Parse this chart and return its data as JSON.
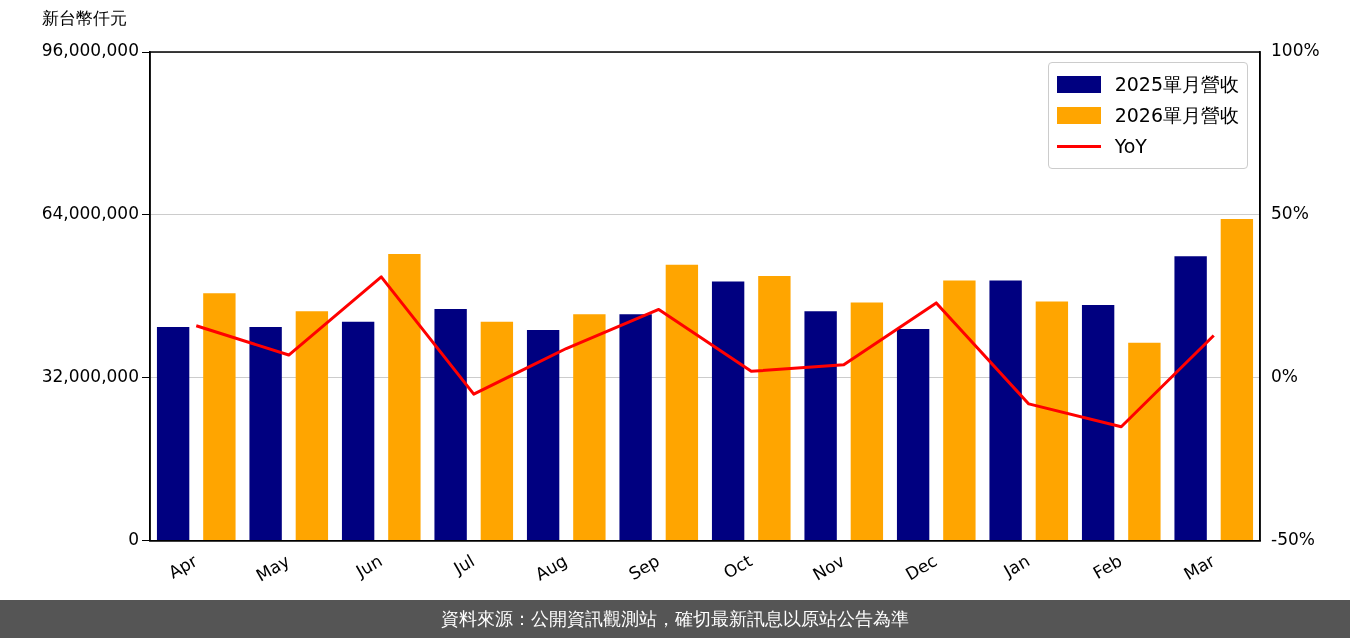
{
  "chart_data": {
    "type": "bar",
    "ylabel": "新台幣仟元",
    "categories": [
      "Apr",
      "May",
      "Jun",
      "Jul",
      "Aug",
      "Sep",
      "Oct",
      "Nov",
      "Dec",
      "Jan",
      "Feb",
      "Mar"
    ],
    "series": [
      {
        "name": "2025單月營收",
        "color": "#000080",
        "values": [
          42000000,
          42000000,
          43000000,
          45500000,
          41400000,
          44500000,
          50900000,
          45100000,
          41600000,
          51100000,
          46300000,
          55900000
        ]
      },
      {
        "name": "2026單月營收",
        "color": "#ffa500",
        "values": [
          48600000,
          45100000,
          56300000,
          43000000,
          44500000,
          54200000,
          52000000,
          46800000,
          51100000,
          47000000,
          38900000,
          63200000
        ]
      },
      {
        "name": "YoY",
        "type": "line",
        "axis": "y2",
        "color": "#ff0000",
        "values": [
          16,
          7,
          31,
          -5,
          9,
          21,
          2,
          4,
          23,
          -8,
          -15,
          13
        ]
      }
    ],
    "ylim": [
      0,
      96000000
    ],
    "yticks": [
      {
        "value": 0,
        "label": "0"
      },
      {
        "value": 32000000,
        "label": "32,000,000"
      },
      {
        "value": 64000000,
        "label": "64,000,000"
      },
      {
        "value": 96000000,
        "label": "96,000,000"
      }
    ],
    "y2lim": [
      -50,
      100
    ],
    "y2ticks": [
      {
        "value": -50,
        "label": "-50%"
      },
      {
        "value": 0,
        "label": "0%"
      },
      {
        "value": 50,
        "label": "50%"
      },
      {
        "value": 100,
        "label": "100%"
      }
    ],
    "grid": "y",
    "legend": "top right",
    "marker": "none",
    "line_style": "solid",
    "annotations": [
      "資料來源：公開資訊觀測站，確切最新訊息以原站公告為準"
    ]
  }
}
